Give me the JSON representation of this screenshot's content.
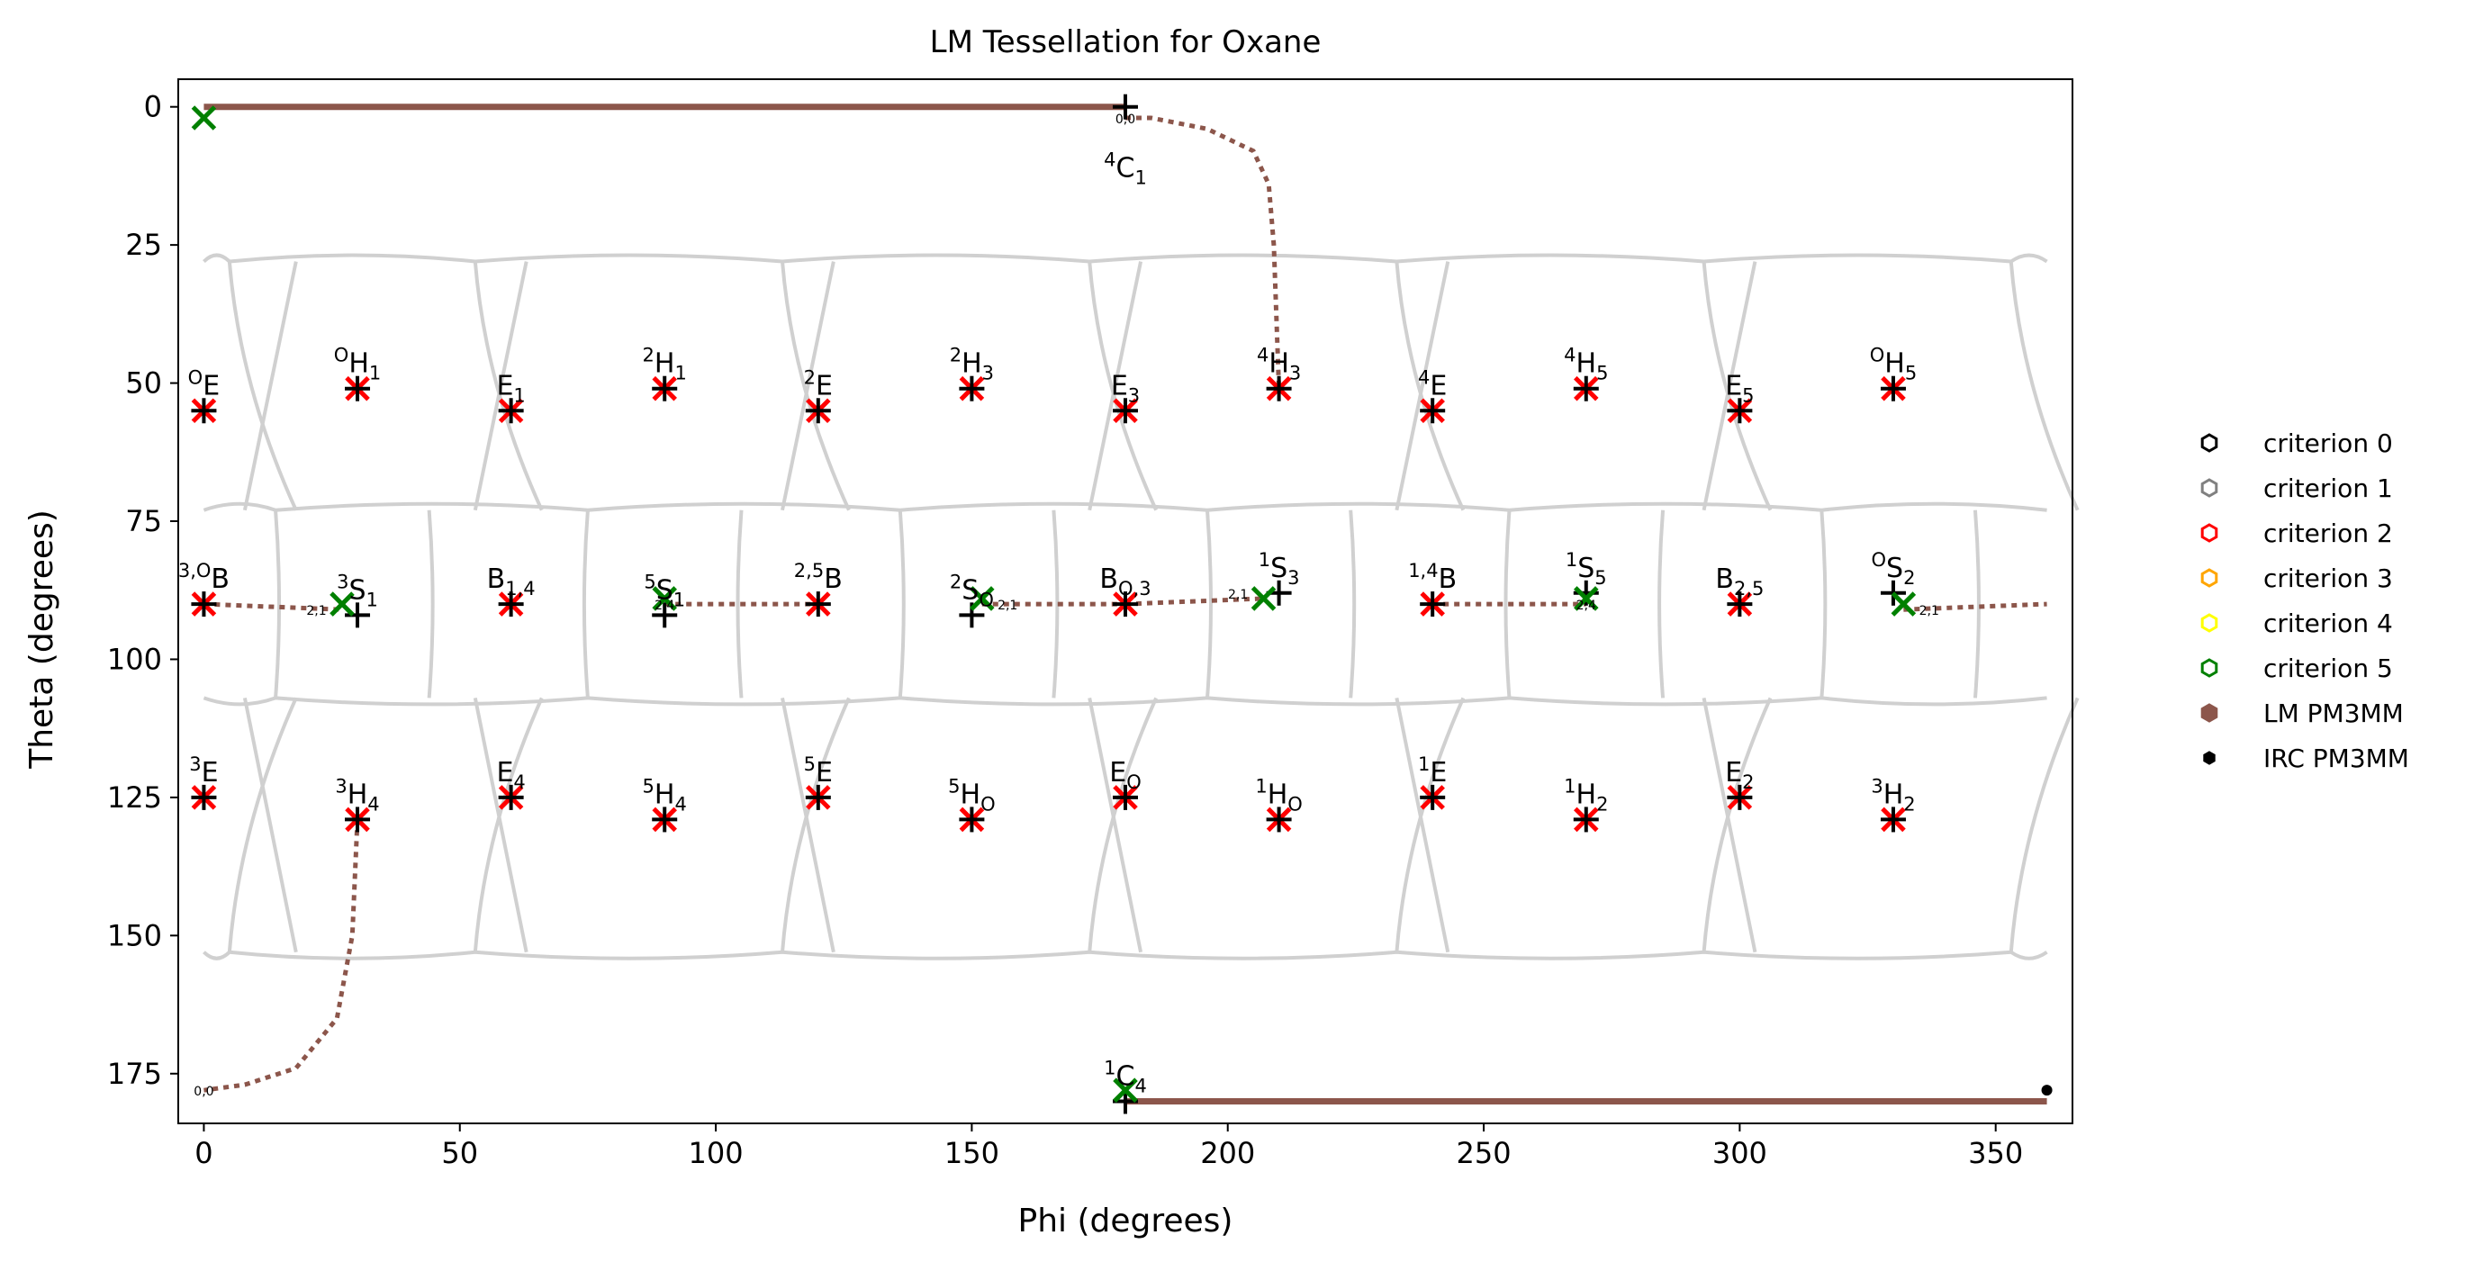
{
  "chart_data": {
    "type": "scatter",
    "title": "LM Tessellation for Oxane",
    "xlabel": "Phi (degrees)",
    "ylabel": "Theta (degrees)",
    "xlim": [
      -5,
      365
    ],
    "ylim": [
      184,
      -5
    ],
    "xticks": [
      0,
      50,
      100,
      150,
      200,
      250,
      300,
      350
    ],
    "yticks": [
      0,
      25,
      50,
      75,
      100,
      125,
      150,
      175
    ],
    "grid": false,
    "legend_position": "right, outside plot",
    "legend": [
      {
        "label": "criterion 0",
        "marker": "hexagon-open",
        "color": "#000000"
      },
      {
        "label": "criterion 1",
        "marker": "hexagon-open",
        "color": "#808080"
      },
      {
        "label": "criterion 2",
        "marker": "hexagon-open",
        "color": "#ff0000"
      },
      {
        "label": "criterion 3",
        "marker": "hexagon-open",
        "color": "#ffa500"
      },
      {
        "label": "criterion 4",
        "marker": "hexagon-open",
        "color": "#ffff00"
      },
      {
        "label": "criterion 5",
        "marker": "hexagon-open",
        "color": "#008000"
      },
      {
        "label": "LM PM3MM",
        "marker": "hexagon-filled",
        "color": "#8c564b"
      },
      {
        "label": "IRC PM3MM",
        "marker": "hexagon-filled",
        "color": "#000000"
      }
    ],
    "colors": {
      "tessellation": "#d0d0d0",
      "criterion2": "#ff0000",
      "criterion5": "#008000",
      "path": "#8c564b",
      "reference": "#000000"
    },
    "reference_points": [
      {
        "label": [
          "4",
          "C",
          "1",
          ""
        ],
        "phi": 180,
        "theta": 0
      },
      {
        "label": [
          "O",
          "E",
          "",
          ""
        ],
        "phi": 0,
        "theta": 55
      },
      {
        "label": [
          "O",
          "H",
          "1",
          ""
        ],
        "phi": 30,
        "theta": 51
      },
      {
        "label": [
          "",
          "E",
          "1",
          ""
        ],
        "phi": 60,
        "theta": 55
      },
      {
        "label": [
          "2",
          "H",
          "1",
          ""
        ],
        "phi": 90,
        "theta": 51
      },
      {
        "label": [
          "2",
          "E",
          "",
          ""
        ],
        "phi": 120,
        "theta": 55
      },
      {
        "label": [
          "2",
          "H",
          "3",
          ""
        ],
        "phi": 150,
        "theta": 51
      },
      {
        "label": [
          "",
          "E",
          "3",
          ""
        ],
        "phi": 180,
        "theta": 55
      },
      {
        "label": [
          "4",
          "H",
          "3",
          ""
        ],
        "phi": 210,
        "theta": 51
      },
      {
        "label": [
          "4",
          "E",
          "",
          ""
        ],
        "phi": 240,
        "theta": 55
      },
      {
        "label": [
          "4",
          "H",
          "5",
          ""
        ],
        "phi": 270,
        "theta": 51
      },
      {
        "label": [
          "",
          "E",
          "5",
          ""
        ],
        "phi": 300,
        "theta": 55
      },
      {
        "label": [
          "O",
          "H",
          "5",
          ""
        ],
        "phi": 330,
        "theta": 51
      },
      {
        "label": [
          "3,O",
          "B",
          "",
          ""
        ],
        "phi": 0,
        "theta": 90
      },
      {
        "label": [
          "3",
          "S",
          "1",
          ""
        ],
        "phi": 30,
        "theta": 92
      },
      {
        "label": [
          "",
          "B",
          "1,4",
          ""
        ],
        "phi": 60,
        "theta": 90
      },
      {
        "label": [
          "5",
          "S",
          "1",
          ""
        ],
        "phi": 90,
        "theta": 92
      },
      {
        "label": [
          "2,5",
          "B",
          "",
          ""
        ],
        "phi": 120,
        "theta": 90
      },
      {
        "label": [
          "2",
          "S",
          "O",
          ""
        ],
        "phi": 150,
        "theta": 92
      },
      {
        "label": [
          "",
          "B",
          "O,3",
          ""
        ],
        "phi": 180,
        "theta": 90
      },
      {
        "label": [
          "1",
          "S",
          "3",
          ""
        ],
        "phi": 210,
        "theta": 88
      },
      {
        "label": [
          "1,4",
          "B",
          "",
          ""
        ],
        "phi": 240,
        "theta": 90
      },
      {
        "label": [
          "1",
          "S",
          "5",
          ""
        ],
        "phi": 270,
        "theta": 88
      },
      {
        "label": [
          "",
          "B",
          "2,5",
          ""
        ],
        "phi": 300,
        "theta": 90
      },
      {
        "label": [
          "O",
          "S",
          "2",
          ""
        ],
        "phi": 330,
        "theta": 88
      },
      {
        "label": [
          "3",
          "E",
          "",
          ""
        ],
        "phi": 0,
        "theta": 125
      },
      {
        "label": [
          "3",
          "H",
          "4",
          ""
        ],
        "phi": 30,
        "theta": 129
      },
      {
        "label": [
          "",
          "E",
          "4",
          ""
        ],
        "phi": 60,
        "theta": 125
      },
      {
        "label": [
          "5",
          "H",
          "4",
          ""
        ],
        "phi": 90,
        "theta": 129
      },
      {
        "label": [
          "5",
          "E",
          "",
          ""
        ],
        "phi": 120,
        "theta": 125
      },
      {
        "label": [
          "5",
          "H",
          "O",
          ""
        ],
        "phi": 150,
        "theta": 129
      },
      {
        "label": [
          "",
          "E",
          "O",
          ""
        ],
        "phi": 180,
        "theta": 125
      },
      {
        "label": [
          "1",
          "H",
          "O",
          ""
        ],
        "phi": 210,
        "theta": 129
      },
      {
        "label": [
          "1",
          "E",
          "",
          ""
        ],
        "phi": 240,
        "theta": 125
      },
      {
        "label": [
          "1",
          "H",
          "2",
          ""
        ],
        "phi": 270,
        "theta": 129
      },
      {
        "label": [
          "",
          "E",
          "2",
          ""
        ],
        "phi": 300,
        "theta": 125
      },
      {
        "label": [
          "3",
          "H",
          "2",
          ""
        ],
        "phi": 330,
        "theta": 129
      },
      {
        "label": [
          "1",
          "C",
          "4",
          ""
        ],
        "phi": 180,
        "theta": 180
      }
    ],
    "criterion2_points": [
      [
        0,
        55
      ],
      [
        30,
        51
      ],
      [
        60,
        55
      ],
      [
        90,
        51
      ],
      [
        120,
        55
      ],
      [
        150,
        51
      ],
      [
        180,
        55
      ],
      [
        210,
        51
      ],
      [
        240,
        55
      ],
      [
        270,
        51
      ],
      [
        300,
        55
      ],
      [
        330,
        51
      ],
      [
        0,
        90
      ],
      [
        60,
        90
      ],
      [
        120,
        90
      ],
      [
        180,
        90
      ],
      [
        240,
        90
      ],
      [
        300,
        90
      ],
      [
        0,
        125
      ],
      [
        30,
        129
      ],
      [
        60,
        125
      ],
      [
        90,
        129
      ],
      [
        120,
        125
      ],
      [
        150,
        129
      ],
      [
        180,
        125
      ],
      [
        210,
        129
      ],
      [
        240,
        125
      ],
      [
        270,
        129
      ],
      [
        300,
        125
      ],
      [
        330,
        129
      ]
    ],
    "criterion5_points": [
      [
        0,
        2
      ],
      [
        27,
        90
      ],
      [
        90,
        89
      ],
      [
        152,
        89
      ],
      [
        207,
        89
      ],
      [
        270,
        89
      ],
      [
        332,
        90
      ],
      [
        180,
        178
      ]
    ],
    "lm_paths": [
      [
        [
          0,
          0
        ],
        [
          180,
          0
        ]
      ],
      [
        [
          180,
          180
        ],
        [
          360,
          180
        ]
      ],
      [
        [
          0,
          90
        ],
        [
          27,
          91
        ]
      ],
      [
        [
          90,
          90
        ],
        [
          120,
          90
        ]
      ],
      [
        [
          152,
          90
        ],
        [
          180,
          90
        ]
      ],
      [
        [
          180,
          90
        ],
        [
          207,
          89
        ]
      ],
      [
        [
          240,
          90
        ],
        [
          270,
          90
        ]
      ],
      [
        [
          332,
          91
        ],
        [
          360,
          90
        ]
      ]
    ],
    "irc_paths": [
      [
        [
          180,
          2
        ],
        [
          185,
          2
        ],
        [
          196,
          4
        ],
        [
          205,
          8
        ],
        [
          208,
          14
        ],
        [
          209,
          25
        ],
        [
          210,
          51
        ]
      ],
      [
        [
          30,
          129
        ],
        [
          29,
          150
        ],
        [
          26,
          165
        ],
        [
          18,
          174
        ],
        [
          8,
          177
        ],
        [
          0,
          178
        ]
      ]
    ],
    "irc_point": [
      360,
      178
    ],
    "path_annotations": [
      {
        "text": "0,0",
        "phi": 180,
        "theta": 2
      },
      {
        "text": "0,0",
        "phi": 0,
        "theta": 178
      },
      {
        "text": "2,1",
        "phi": 22,
        "theta": 91
      },
      {
        "text": "2,4",
        "phi": 90,
        "theta": 90
      },
      {
        "text": "2,1",
        "phi": 157,
        "theta": 90
      },
      {
        "text": "2,1",
        "phi": 202,
        "theta": 88
      },
      {
        "text": "2,4",
        "phi": 270,
        "theta": 90
      },
      {
        "text": "2,1",
        "phi": 337,
        "theta": 91
      }
    ],
    "tessellation": {
      "row_boundaries": [
        28,
        73,
        107,
        153
      ],
      "columns_upper": [
        [
          5,
          18
        ],
        [
          53,
          63
        ],
        [
          113,
          123
        ],
        [
          173,
          183
        ],
        [
          233,
          243
        ],
        [
          293,
          303
        ],
        [
          353,
          363
        ]
      ],
      "columns_mid": [
        14,
        44,
        75,
        105,
        136,
        166,
        196,
        224,
        255,
        285,
        316,
        346
      ]
    }
  }
}
